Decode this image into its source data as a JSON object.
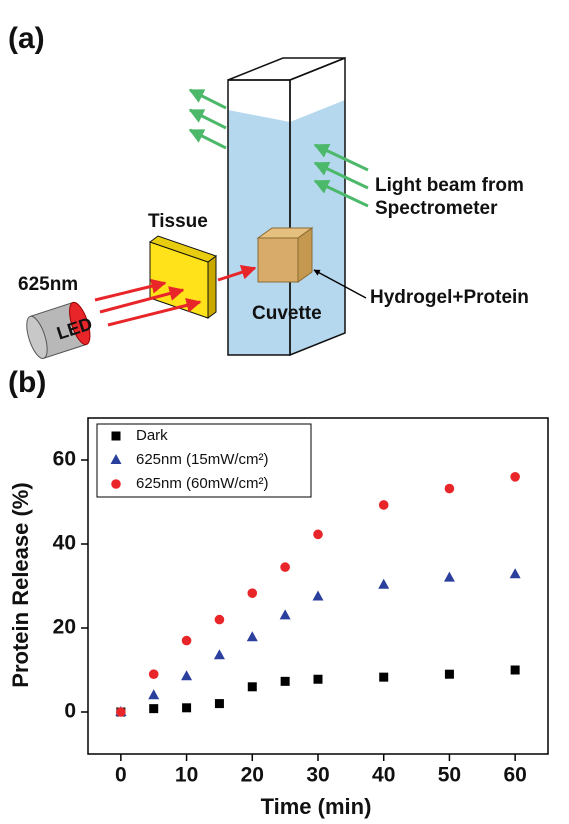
{
  "panel_labels": [
    "(a)",
    "(b)"
  ],
  "diagram": {
    "beam_label": [
      "Light beam from",
      "Spectrometer"
    ],
    "tissue": "Tissue",
    "wavelength": "625nm",
    "led": "LED",
    "cuvette": "Cuvette",
    "hydrogel": "Hydrogel+Protein"
  },
  "chart_data": {
    "type": "scatter",
    "x_label": "Time (min)",
    "y_label": "Protein Release (%)",
    "x": [
      0,
      5,
      10,
      15,
      20,
      25,
      30,
      40,
      50,
      60
    ],
    "series": [
      {
        "name": "Dark",
        "color": "#000000",
        "marker": "square",
        "values": [
          0,
          0.8,
          1,
          2,
          6,
          7.3,
          7.8,
          8.3,
          9,
          10
        ]
      },
      {
        "name": "625nm (15mW/cm²)",
        "color": "#2b3f9c",
        "marker": "triangle",
        "values": [
          0,
          4,
          8.5,
          13.5,
          17.8,
          23,
          27.5,
          30.3,
          32,
          32.8
        ]
      },
      {
        "name": "625nm (60mW/cm²)",
        "color": "#e8262a",
        "marker": "circle",
        "values": [
          0,
          9,
          17,
          22,
          28.3,
          34.5,
          42.3,
          49.3,
          53.2,
          56
        ]
      }
    ],
    "xlim": [
      -5,
      65
    ],
    "ylim": [
      -10,
      70
    ],
    "xticks": [
      0,
      10,
      20,
      30,
      40,
      50,
      60
    ],
    "yticks": [
      0,
      20,
      40,
      60
    ],
    "legend": "upper left"
  }
}
